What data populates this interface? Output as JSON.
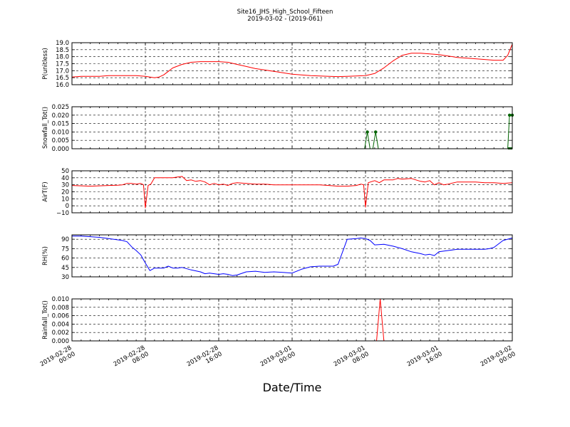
{
  "figure": {
    "title_line1": "Site16_JHS_High_School_Fifteen",
    "title_line2": "2019-03-02 - (2019-061)",
    "xlabel": "Date/Time",
    "x_ticks": [
      {
        "t": 0,
        "line1": "2019-02-28",
        "line2": "00:00"
      },
      {
        "t": 8,
        "line1": "2019-02-28",
        "line2": "08:00"
      },
      {
        "t": 16,
        "line1": "2019-02-28",
        "line2": "16:00"
      },
      {
        "t": 24,
        "line1": "2019-03-01",
        "line2": "00:00"
      },
      {
        "t": 32,
        "line1": "2019-03-01",
        "line2": "08:00"
      },
      {
        "t": 40,
        "line1": "2019-03-01",
        "line2": "16:00"
      },
      {
        "t": 48,
        "line1": "2019-03-02",
        "line2": "00:00"
      }
    ]
  },
  "chart_data": [
    {
      "type": "line",
      "ylabel": "P(unitless)",
      "ylim": [
        16.0,
        19.0
      ],
      "yticks": [
        "16.0",
        "16.5",
        "17.0",
        "17.5",
        "18.0",
        "18.5",
        "19.0"
      ],
      "ytick_values": [
        16.0,
        16.5,
        17.0,
        17.5,
        18.0,
        18.5,
        19.0
      ],
      "xlim": [
        0,
        48
      ],
      "grid": true,
      "color": "#ff0000",
      "x": [
        0,
        1,
        2,
        3,
        4,
        5,
        6,
        7,
        8,
        8.5,
        9,
        9.5,
        10,
        10.5,
        11,
        12,
        13,
        14,
        15,
        16,
        17,
        18,
        19,
        20,
        21,
        22,
        23,
        24,
        25,
        26,
        27,
        28,
        29,
        30,
        31,
        32,
        33,
        34,
        35,
        36,
        37,
        38,
        39,
        40,
        41,
        42,
        43,
        44,
        45,
        46,
        47,
        47.5,
        48
      ],
      "values": [
        16.55,
        16.6,
        16.6,
        16.6,
        16.65,
        16.65,
        16.65,
        16.65,
        16.6,
        16.55,
        16.5,
        16.55,
        16.7,
        16.95,
        17.2,
        17.45,
        17.6,
        17.65,
        17.65,
        17.65,
        17.6,
        17.45,
        17.3,
        17.15,
        17.05,
        16.95,
        16.85,
        16.75,
        16.7,
        16.65,
        16.62,
        16.6,
        16.58,
        16.6,
        16.62,
        16.65,
        16.8,
        17.2,
        17.7,
        18.1,
        18.25,
        18.25,
        18.2,
        18.15,
        18.05,
        17.95,
        17.9,
        17.85,
        17.8,
        17.75,
        17.75,
        18.1,
        18.9
      ]
    },
    {
      "type": "line",
      "ylabel": "Snowfall_Tot()",
      "ylim": [
        0.0,
        0.025
      ],
      "yticks": [
        "0.000",
        "0.005",
        "0.010",
        "0.015",
        "0.020",
        "0.025"
      ],
      "ytick_values": [
        0.0,
        0.005,
        0.01,
        0.015,
        0.02,
        0.025
      ],
      "xlim": [
        0,
        48
      ],
      "grid": true,
      "color": "#006400",
      "markers": true,
      "x": [
        0,
        31.9,
        32.2,
        32.5,
        32.8,
        33.1,
        33.4,
        47.5,
        47.7,
        48
      ],
      "values": [
        0,
        0,
        0.01,
        0,
        0,
        0.01,
        0,
        0,
        0.02,
        0.02
      ]
    },
    {
      "type": "line",
      "ylabel": "AirT(F)",
      "ylim": [
        -10,
        50
      ],
      "yticks": [
        "−10",
        "0",
        "10",
        "20",
        "30",
        "40",
        "50"
      ],
      "ytick_values": [
        -10,
        0,
        10,
        20,
        30,
        40,
        50
      ],
      "xlim": [
        0,
        48
      ],
      "grid": true,
      "color": "#ff0000",
      "x": [
        0,
        1,
        2,
        3,
        4,
        5,
        5.5,
        6,
        6.5,
        7,
        7.5,
        7.8,
        8.0,
        8.3,
        8.6,
        9,
        10,
        11,
        11.5,
        12,
        12.5,
        13,
        13.5,
        14,
        14.5,
        15,
        15.5,
        16,
        16.5,
        17,
        17.5,
        18,
        19,
        20,
        21,
        22,
        23,
        24,
        25,
        26,
        27,
        28,
        29,
        30,
        31,
        31.5,
        31.8,
        32.0,
        32.3,
        33,
        33.5,
        34,
        35,
        35.5,
        36,
        37,
        37.5,
        38,
        38.5,
        39,
        39.5,
        40,
        40.5,
        41,
        42,
        43,
        44,
        45,
        46,
        47,
        48
      ],
      "values": [
        29,
        28.5,
        28,
        28.5,
        29,
        29.5,
        30,
        32,
        32,
        31,
        32,
        30,
        -3,
        29,
        31,
        40,
        40,
        40,
        41,
        42,
        36,
        37,
        35,
        36,
        34,
        30,
        32,
        30,
        31,
        29,
        32,
        33,
        32,
        31,
        31,
        30,
        30,
        30,
        30,
        30,
        30,
        29,
        28,
        28,
        29,
        31,
        30,
        -2,
        33,
        36,
        33,
        37,
        37,
        39,
        38,
        39,
        37,
        35,
        34,
        36,
        30,
        33,
        30,
        31,
        34,
        34,
        34,
        33,
        33,
        32,
        33
      ]
    },
    {
      "type": "line",
      "ylabel": "RH(%)",
      "ylim": [
        30,
        97
      ],
      "yticks": [
        "30",
        "45",
        "60",
        "75",
        "90"
      ],
      "ytick_values": [
        30,
        45,
        60,
        75,
        90
      ],
      "xlim": [
        0,
        48
      ],
      "grid": true,
      "color": "#0000ff",
      "x": [
        0,
        1,
        2,
        3,
        4,
        5,
        5.5,
        6,
        6.5,
        7,
        7.5,
        8,
        8.5,
        9,
        10,
        10.5,
        11,
        11.5,
        12,
        13,
        14,
        14.5,
        15,
        16,
        16.5,
        17,
        17.5,
        18,
        19,
        20,
        21,
        22,
        23,
        24,
        25,
        26,
        27,
        28,
        28.5,
        29,
        30,
        31,
        31.5,
        32,
        32.5,
        33,
        34,
        35,
        36,
        37,
        38,
        38.5,
        39,
        39.5,
        40,
        40.5,
        41,
        42,
        43,
        44,
        45,
        45.5,
        46,
        47,
        48
      ],
      "values": [
        95,
        95,
        94,
        93,
        91,
        89,
        88,
        86,
        78,
        72,
        65,
        52,
        40,
        44,
        44,
        47,
        44,
        44,
        45,
        41,
        38,
        35,
        36,
        34,
        35,
        34,
        32,
        33,
        38,
        39,
        37,
        38,
        37,
        36,
        42,
        46,
        47,
        47,
        47,
        50,
        90,
        91,
        92,
        91,
        88,
        81,
        82,
        79,
        75,
        70,
        67,
        65,
        66,
        64,
        70,
        71,
        72,
        74,
        74,
        74,
        74,
        75,
        77,
        88,
        92
      ]
    },
    {
      "type": "line",
      "ylabel": "Rainfall_Tot()",
      "ylim": [
        0.0,
        0.01
      ],
      "yticks": [
        "0.000",
        "0.002",
        "0.004",
        "0.006",
        "0.008",
        "0.010"
      ],
      "ytick_values": [
        0.0,
        0.002,
        0.004,
        0.006,
        0.008,
        0.01
      ],
      "xlim": [
        0,
        48
      ],
      "grid": true,
      "color": "#ff0000",
      "x": [
        0,
        33.2,
        33.6,
        34.0,
        48
      ],
      "values": [
        0,
        0,
        0.01,
        0,
        0
      ]
    }
  ]
}
